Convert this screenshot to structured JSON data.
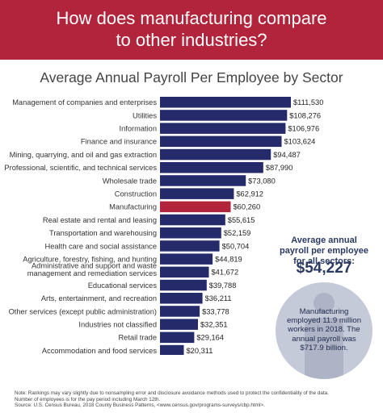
{
  "header": {
    "title_line1": "How does manufacturing compare",
    "title_line2": "to other industries?"
  },
  "chart_data": {
    "type": "bar",
    "orientation": "horizontal",
    "title": "Average Annual Payroll Per Employee by Sector",
    "categories": [
      [
        "Management of companies and enterprises"
      ],
      [
        "Utilities"
      ],
      [
        "Information"
      ],
      [
        "Finance and insurance"
      ],
      [
        "Mining, quarrying, and oil and gas extraction"
      ],
      [
        "Professional, scientific, and technical services"
      ],
      [
        "Wholesale trade"
      ],
      [
        "Construction"
      ],
      [
        "Manufacturing"
      ],
      [
        "Real estate and rental and leasing"
      ],
      [
        "Transportation and warehousing"
      ],
      [
        "Health care and social assistance"
      ],
      [
        "Agriculture, forestry, fishing, and hunting"
      ],
      [
        "Administrative and support and waste",
        "management and remediation services"
      ],
      [
        "Educational services"
      ],
      [
        "Arts, entertainment, and recreation"
      ],
      [
        "Other services (except public administration)"
      ],
      [
        "Industries not classified"
      ],
      [
        "Retail trade"
      ],
      [
        "Accommodation and food services"
      ]
    ],
    "values": [
      111530,
      108276,
      106976,
      103624,
      94487,
      87990,
      73080,
      62912,
      60260,
      55615,
      52159,
      50704,
      44819,
      41672,
      39788,
      36211,
      33778,
      32351,
      29164,
      20311
    ],
    "value_labels": [
      "$111,530",
      "$108,276",
      "$106,976",
      "$103,624",
      "$94,487",
      "$87,990",
      "$73,080",
      "$62,912",
      "$60,260",
      "$55,615",
      "$52,159",
      "$50,704",
      "$44,819",
      "$41,672",
      "$39,788",
      "$36,211",
      "$33,778",
      "$32,351",
      "$29,164",
      "$20,311"
    ],
    "highlight": "Manufacturing",
    "colors": {
      "bar": "#252a6b",
      "highlight": "#b1243b"
    }
  },
  "sidebar": {
    "heading_line1": "Average annual",
    "heading_line2": "payroll per employee",
    "heading_line3": "for all sectors:",
    "amount": "$54,227",
    "circle_line1": "Manufacturing",
    "circle_line2": "employed 11.9 million",
    "circle_line3": "workers in 2018. The",
    "circle_line4": "annual payroll was",
    "circle_line5": "$717.9 billion."
  },
  "footnote": {
    "line1": "Note: Rankings may vary slightly due to nonsampling error and disclosure avoidance methods used to protect the confidentiality of the data.",
    "line2": "Number of employees is for the pay period including March 12th.",
    "line3": "Source: U.S. Census Bureau, 2018 County Business Patterns, <www.census.gov/programs-surveys/cbp.html>."
  }
}
